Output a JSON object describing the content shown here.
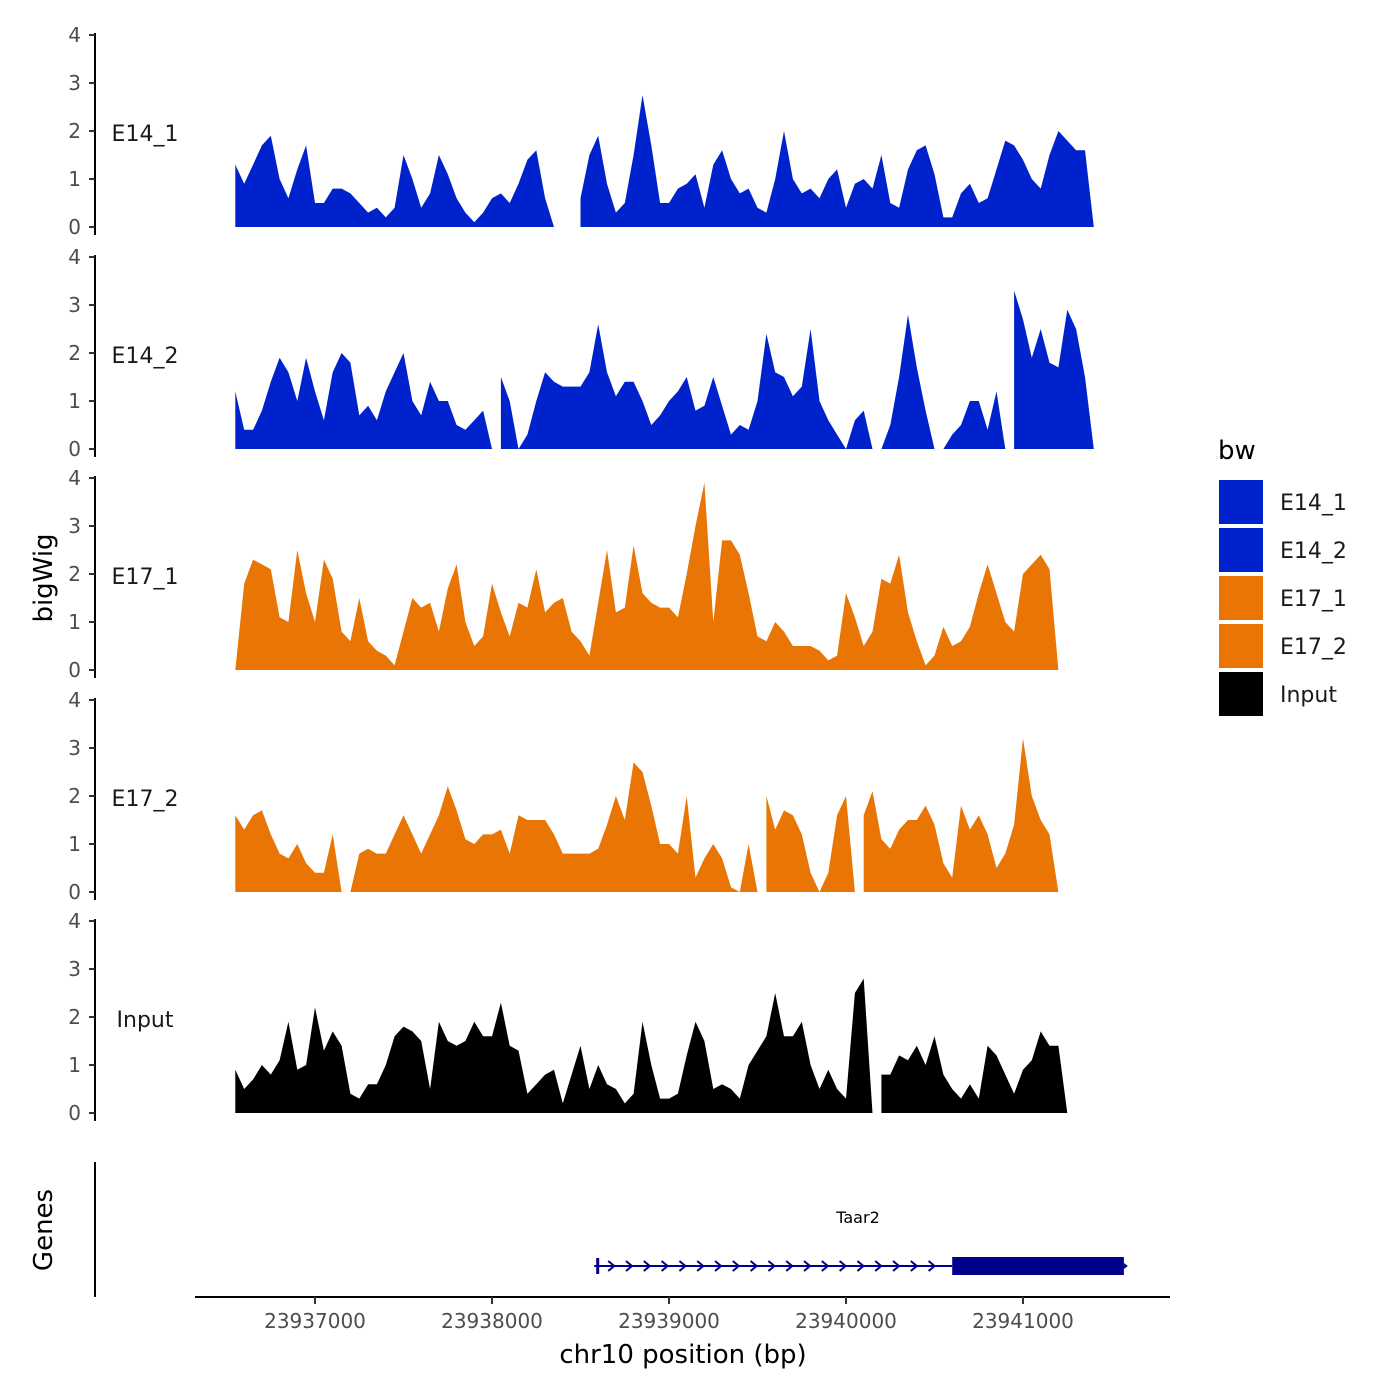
{
  "chart_data": {
    "type": "area",
    "title": "",
    "ylabel": "bigWig",
    "xlabel": "chr10 position (bp)",
    "xlim": [
      23936270,
      23941790
    ],
    "ylim": [
      0,
      4
    ],
    "y_ticks": [
      0,
      1,
      2,
      3,
      4
    ],
    "x_ticks": [
      23937000,
      23938000,
      23939000,
      23940000,
      23941000
    ],
    "x_tick_labels": [
      "23937000",
      "23938000",
      "23939000",
      "23940000",
      "23941000"
    ],
    "grid": false,
    "legend": {
      "title": "bw",
      "position": "right",
      "entries": [
        {
          "label": "E14_1",
          "color": "#0022CC"
        },
        {
          "label": "E14_2",
          "color": "#0022CC"
        },
        {
          "label": "E17_1",
          "color": "#E87504"
        },
        {
          "label": "E17_2",
          "color": "#E87504"
        },
        {
          "label": "Input",
          "color": "#000000"
        }
      ]
    },
    "series": [
      {
        "name": "E14_1",
        "color": "#0022CC",
        "x": [
          23936550,
          23936600,
          23936650,
          23936700,
          23936750,
          23936800,
          23936850,
          23936900,
          23936950,
          23937000,
          23937050,
          23937100,
          23937150,
          23937200,
          23937250,
          23937300,
          23937350,
          23937400,
          23937450,
          23937500,
          23937550,
          23937600,
          23937650,
          23937700,
          23937750,
          23937800,
          23937850,
          23937900,
          23937950,
          23938000,
          23938050,
          23938100,
          23938150,
          23938200,
          23938250,
          23938300,
          23938350,
          23938400,
          23938450,
          23938500,
          23938550,
          23938600,
          23938650,
          23938700,
          23938750,
          23938800,
          23938850,
          23938900,
          23938950,
          23939000,
          23939050,
          23939100,
          23939150,
          23939200,
          23939250,
          23939300,
          23939350,
          23939400,
          23939450,
          23939500,
          23939550,
          23939600,
          23939650,
          23939700,
          23939750,
          23939800,
          23939850,
          23939900,
          23939950,
          23940000,
          23940050,
          23940100,
          23940150,
          23940200,
          23940250,
          23940300,
          23940350,
          23940400,
          23940450,
          23940500,
          23940550,
          23940600,
          23940650,
          23940700,
          23940750,
          23940800,
          23940850,
          23940900,
          23940950,
          23941000,
          23941050,
          23941100,
          23941150,
          23941200,
          23941250,
          23941300,
          23941350,
          23941400,
          23941450,
          23941500,
          23941550
        ],
        "values": [
          1.3,
          0.9,
          1.3,
          1.7,
          1.9,
          1.0,
          0.6,
          1.2,
          1.7,
          0.5,
          0.5,
          0.8,
          0.8,
          0.7,
          0.5,
          0.3,
          0.4,
          0.2,
          0.4,
          1.5,
          1.0,
          0.4,
          0.7,
          1.5,
          1.1,
          0.6,
          0.3,
          0.1,
          0.3,
          0.6,
          0.7,
          0.5,
          0.9,
          1.4,
          1.6,
          0.6,
          0,
          0,
          0.4,
          0.6,
          1.5,
          1.9,
          0.9,
          0.3,
          0.5,
          1.5,
          2.75,
          1.7,
          0.5,
          0.5,
          0.8,
          0.9,
          1.1,
          0.4,
          1.3,
          1.6,
          1.0,
          0.7,
          0.8,
          0.4,
          0.3,
          1.0,
          2.0,
          1.0,
          0.7,
          0.8,
          0.6,
          1.0,
          1.2,
          0.4,
          0.9,
          1.0,
          0.8,
          1.5,
          0.5,
          0.4,
          1.2,
          1.6,
          1.7,
          1.1,
          0.2,
          0.2,
          0.7,
          0.9,
          0.5,
          0.6,
          1.2,
          1.8,
          1.7,
          1.4,
          1.0,
          0.8,
          1.5,
          2.0,
          1.8,
          1.6,
          1.6,
          0,
          0,
          0,
          0
        ],
        "gaps": [
          23938450
        ]
      },
      {
        "name": "E14_2",
        "color": "#0022CC",
        "x": [
          23936550,
          23936600,
          23936650,
          23936700,
          23936750,
          23936800,
          23936850,
          23936900,
          23936950,
          23937000,
          23937050,
          23937100,
          23937150,
          23937200,
          23937250,
          23937300,
          23937350,
          23937400,
          23937450,
          23937500,
          23937550,
          23937600,
          23937650,
          23937700,
          23937750,
          23937800,
          23937850,
          23937900,
          23937950,
          23938000,
          23938050,
          23938100,
          23938150,
          23938200,
          23938250,
          23938300,
          23938350,
          23938400,
          23938450,
          23938500,
          23938550,
          23938600,
          23938650,
          23938700,
          23938750,
          23938800,
          23938850,
          23938900,
          23938950,
          23939000,
          23939050,
          23939100,
          23939150,
          23939200,
          23939250,
          23939300,
          23939350,
          23939400,
          23939450,
          23939500,
          23939550,
          23939600,
          23939650,
          23939700,
          23939750,
          23939800,
          23939850,
          23939900,
          23939950,
          23940000,
          23940050,
          23940100,
          23940150,
          23940200,
          23940250,
          23940300,
          23940350,
          23940400,
          23940450,
          23940500,
          23940550,
          23940600,
          23940650,
          23940700,
          23940750,
          23940800,
          23940850,
          23940900,
          23940950,
          23941000,
          23941050,
          23941100,
          23941150,
          23941200,
          23941250,
          23941300,
          23941350,
          23941400,
          23941450,
          23941500,
          23941550
        ],
        "values": [
          1.2,
          0.4,
          0.4,
          0.8,
          1.4,
          1.9,
          1.6,
          1.0,
          1.9,
          1.2,
          0.6,
          1.6,
          2.0,
          1.8,
          0.7,
          0.9,
          0.6,
          1.2,
          1.6,
          2.0,
          1.0,
          0.7,
          1.4,
          1.0,
          1.0,
          0.5,
          0.4,
          0.6,
          0.8,
          0.9,
          1.5,
          1.0,
          0,
          0.3,
          1.0,
          1.6,
          1.4,
          1.3,
          1.3,
          1.3,
          1.6,
          2.6,
          1.6,
          1.1,
          1.4,
          1.4,
          1.0,
          0.5,
          0.7,
          1.0,
          1.2,
          1.5,
          0.8,
          0.9,
          1.5,
          0.9,
          0.3,
          0.5,
          0.4,
          1.0,
          2.4,
          1.6,
          1.5,
          1.1,
          1.3,
          2.5,
          1.0,
          0.6,
          0.3,
          0,
          0.6,
          0.8,
          0.5,
          0,
          0.5,
          1.5,
          2.8,
          1.7,
          0.8,
          0,
          0,
          0.3,
          0.5,
          1.0,
          1.0,
          0.4,
          1.2,
          1.8,
          3.3,
          2.7,
          1.9,
          2.5,
          1.8,
          1.7,
          2.9,
          2.5,
          1.5,
          0,
          0,
          0,
          0
        ],
        "gaps": [
          23938000,
          23940150,
          23940900
        ]
      },
      {
        "name": "E17_1",
        "color": "#E87504",
        "x": [
          23936550,
          23936600,
          23936650,
          23936700,
          23936750,
          23936800,
          23936850,
          23936900,
          23936950,
          23937000,
          23937050,
          23937100,
          23937150,
          23937200,
          23937250,
          23937300,
          23937350,
          23937400,
          23937450,
          23937500,
          23937550,
          23937600,
          23937650,
          23937700,
          23937750,
          23937800,
          23937850,
          23937900,
          23937950,
          23938000,
          23938050,
          23938100,
          23938150,
          23938200,
          23938250,
          23938300,
          23938350,
          23938400,
          23938450,
          23938500,
          23938550,
          23938600,
          23938650,
          23938700,
          23938750,
          23938800,
          23938850,
          23938900,
          23938950,
          23939000,
          23939050,
          23939100,
          23939150,
          23939200,
          23939250,
          23939300,
          23939350,
          23939400,
          23939450,
          23939500,
          23939550,
          23939600,
          23939650,
          23939700,
          23939750,
          23939800,
          23939850,
          23939900,
          23939950,
          23940000,
          23940050,
          23940100,
          23940150,
          23940200,
          23940250,
          23940300,
          23940350,
          23940400,
          23940450,
          23940500,
          23940550,
          23940600,
          23940650,
          23940700,
          23940750,
          23940800,
          23940850,
          23940900,
          23940950,
          23941000,
          23941050,
          23941100,
          23941150,
          23941200,
          23941250,
          23941300,
          23941350,
          23941400,
          23941450,
          23941500,
          23941550
        ],
        "values": [
          0,
          1.8,
          2.3,
          2.2,
          2.1,
          1.1,
          1.0,
          2.5,
          1.6,
          1.0,
          2.3,
          1.9,
          0.8,
          0.6,
          1.5,
          0.6,
          0.4,
          0.3,
          0.1,
          0.8,
          1.5,
          1.3,
          1.4,
          0.8,
          1.7,
          2.2,
          1.0,
          0.5,
          0.7,
          1.8,
          1.2,
          0.7,
          1.4,
          1.3,
          2.1,
          1.2,
          1.4,
          1.5,
          0.8,
          0.6,
          0.3,
          1.4,
          2.5,
          1.2,
          1.3,
          2.6,
          1.6,
          1.4,
          1.3,
          1.3,
          1.1,
          2.0,
          3.0,
          3.9,
          1.0,
          2.7,
          2.7,
          2.4,
          1.6,
          0.7,
          0.6,
          1.0,
          0.8,
          0.5,
          0.5,
          0.5,
          0.4,
          0.2,
          0.3,
          1.6,
          1.1,
          0.5,
          0.8,
          1.9,
          1.8,
          2.4,
          1.2,
          0.6,
          0.1,
          0.3,
          0.9,
          0.5,
          0.6,
          0.9,
          1.6,
          2.2,
          1.6,
          1.0,
          0.8,
          2.0,
          2.2,
          2.4,
          2.1,
          0,
          0,
          0,
          0,
          0,
          0,
          0,
          0
        ]
      },
      {
        "name": "E17_2",
        "color": "#E87504",
        "x": [
          23936550,
          23936600,
          23936650,
          23936700,
          23936750,
          23936800,
          23936850,
          23936900,
          23936950,
          23937000,
          23937050,
          23937100,
          23937150,
          23937200,
          23937250,
          23937300,
          23937350,
          23937400,
          23937450,
          23937500,
          23937550,
          23937600,
          23937650,
          23937700,
          23937750,
          23937800,
          23937850,
          23937900,
          23937950,
          23938000,
          23938050,
          23938100,
          23938150,
          23938200,
          23938250,
          23938300,
          23938350,
          23938400,
          23938450,
          23938500,
          23938550,
          23938600,
          23938650,
          23938700,
          23938750,
          23938800,
          23938850,
          23938900,
          23938950,
          23939000,
          23939050,
          23939100,
          23939150,
          23939200,
          23939250,
          23939300,
          23939350,
          23939400,
          23939450,
          23939500,
          23939550,
          23939600,
          23939650,
          23939700,
          23939750,
          23939800,
          23939850,
          23939900,
          23939950,
          23940000,
          23940050,
          23940100,
          23940150,
          23940200,
          23940250,
          23940300,
          23940350,
          23940400,
          23940450,
          23940500,
          23940550,
          23940600,
          23940650,
          23940700,
          23940750,
          23940800,
          23940850,
          23940900,
          23940950,
          23941000,
          23941050,
          23941100,
          23941150,
          23941200,
          23941250,
          23941300,
          23941350,
          23941400,
          23941450,
          23941500,
          23941550
        ],
        "values": [
          1.6,
          1.3,
          1.6,
          1.7,
          1.2,
          0.8,
          0.7,
          1.0,
          0.6,
          0.4,
          0.4,
          1.2,
          0,
          0,
          0.8,
          0.9,
          0.8,
          0.8,
          1.2,
          1.6,
          1.2,
          0.8,
          1.2,
          1.6,
          2.2,
          1.7,
          1.1,
          1.0,
          1.2,
          1.2,
          1.3,
          0.8,
          1.6,
          1.5,
          1.5,
          1.5,
          1.2,
          0.8,
          0.8,
          0.8,
          0.8,
          0.9,
          1.4,
          2.0,
          1.5,
          2.7,
          2.5,
          1.8,
          1.0,
          1.0,
          0.8,
          2.0,
          0.3,
          0.7,
          1.0,
          0.7,
          0.1,
          0,
          1.0,
          1.4,
          2.0,
          1.3,
          1.7,
          1.6,
          1.2,
          0.4,
          0,
          0.4,
          1.6,
          2.0,
          2.4,
          1.6,
          2.1,
          1.1,
          0.9,
          1.3,
          1.5,
          1.5,
          1.8,
          1.4,
          0.6,
          0.3,
          1.8,
          1.3,
          1.6,
          1.2,
          0.5,
          0.8,
          1.4,
          3.2,
          2.0,
          1.5,
          1.2,
          0,
          0,
          0,
          0,
          0,
          0,
          0,
          0
        ],
        "gaps": [
          23937150,
          23939500,
          23940050
        ]
      },
      {
        "name": "Input",
        "color": "#000000",
        "x": [
          23936550,
          23936600,
          23936650,
          23936700,
          23936750,
          23936800,
          23936850,
          23936900,
          23936950,
          23937000,
          23937050,
          23937100,
          23937150,
          23937200,
          23937250,
          23937300,
          23937350,
          23937400,
          23937450,
          23937500,
          23937550,
          23937600,
          23937650,
          23937700,
          23937750,
          23937800,
          23937850,
          23937900,
          23937950,
          23938000,
          23938050,
          23938100,
          23938150,
          23938200,
          23938250,
          23938300,
          23938350,
          23938400,
          23938450,
          23938500,
          23938550,
          23938600,
          23938650,
          23938700,
          23938750,
          23938800,
          23938850,
          23938900,
          23938950,
          23939000,
          23939050,
          23939100,
          23939150,
          23939200,
          23939250,
          23939300,
          23939350,
          23939400,
          23939450,
          23939500,
          23939550,
          23939600,
          23939650,
          23939700,
          23939750,
          23939800,
          23939850,
          23939900,
          23939950,
          23940000,
          23940050,
          23940100,
          23940150,
          23940200,
          23940250,
          23940300,
          23940350,
          23940400,
          23940450,
          23940500,
          23940550,
          23940600,
          23940650,
          23940700,
          23940750,
          23940800,
          23940850,
          23940900,
          23940950,
          23941000,
          23941050,
          23941100,
          23941150,
          23941200,
          23941250,
          23941300,
          23941350,
          23941400,
          23941450,
          23941500,
          23941550
        ],
        "values": [
          0.9,
          0.5,
          0.7,
          1.0,
          0.8,
          1.1,
          1.9,
          0.9,
          1.0,
          2.2,
          1.3,
          1.7,
          1.4,
          0.4,
          0.3,
          0.6,
          0.6,
          1.0,
          1.6,
          1.8,
          1.7,
          1.5,
          0.5,
          1.9,
          1.5,
          1.4,
          1.5,
          1.9,
          1.6,
          1.6,
          2.3,
          1.4,
          1.3,
          0.4,
          0.6,
          0.8,
          0.9,
          0.2,
          0.8,
          1.4,
          0.5,
          1.0,
          0.6,
          0.5,
          0.2,
          0.4,
          1.9,
          1.0,
          0.3,
          0.3,
          0.4,
          1.2,
          1.9,
          1.5,
          0.5,
          0.6,
          0.5,
          0.3,
          1.0,
          1.3,
          1.6,
          2.5,
          1.6,
          1.6,
          1.9,
          1.0,
          0.5,
          0.9,
          0.5,
          0.3,
          2.5,
          2.8,
          1.5,
          0.8,
          0.8,
          1.2,
          1.1,
          1.4,
          1.0,
          1.6,
          0.8,
          0.5,
          0.3,
          0.6,
          0.3,
          1.4,
          1.2,
          0.8,
          0.4,
          0.9,
          1.1,
          1.7,
          1.4,
          1.4,
          0,
          0,
          0,
          0,
          0,
          0,
          0
        ],
        "gaps": [
          23940150
        ]
      }
    ],
    "genes": {
      "track_label": "Genes",
      "items": [
        {
          "name": "Taar2",
          "strand": "+",
          "start": 23938600,
          "end": 23941590,
          "cds_start": 23940600,
          "cds_end": 23941570,
          "color": "#00008B"
        }
      ]
    }
  }
}
